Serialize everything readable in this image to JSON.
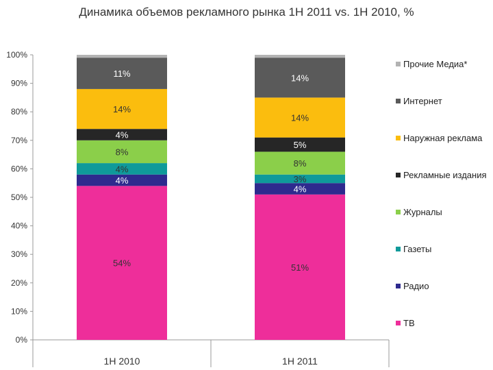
{
  "chart_data": {
    "type": "bar",
    "stacked": true,
    "title": "Динамика объемов рекламного рынка 1H 2011 vs. 1H 2010, %",
    "categories": [
      "1H 2010",
      "1H 2011"
    ],
    "ylim": [
      0,
      100
    ],
    "yticks": [
      "0%",
      "10%",
      "20%",
      "30%",
      "40%",
      "50%",
      "60%",
      "70%",
      "80%",
      "90%",
      "100%"
    ],
    "legend_position": "right",
    "grid": false,
    "series": [
      {
        "name": "ТВ",
        "color": "#ee2e9a",
        "values": [
          54,
          51
        ],
        "labels": [
          "54%",
          "51%"
        ]
      },
      {
        "name": "Радио",
        "color": "#2e2a8e",
        "values": [
          4,
          4
        ],
        "labels": [
          "4%",
          "4%"
        ]
      },
      {
        "name": "Газеты",
        "color": "#0f9a9a",
        "values": [
          4,
          3
        ],
        "labels": [
          "4%",
          "3%"
        ]
      },
      {
        "name": "Журналы",
        "color": "#8bcf4a",
        "values": [
          8,
          8
        ],
        "labels": [
          "8%",
          "8%"
        ]
      },
      {
        "name": "Рекламные издания",
        "color": "#262626",
        "values": [
          4,
          5
        ],
        "labels": [
          "4%",
          "5%"
        ]
      },
      {
        "name": "Наружная реклама",
        "color": "#fbbd0e",
        "values": [
          14,
          14
        ],
        "labels": [
          "14%",
          "14%"
        ]
      },
      {
        "name": "Интернет",
        "color": "#5a5a5a",
        "values": [
          11,
          14
        ],
        "labels": [
          "11%",
          "14%"
        ]
      },
      {
        "name": "Прочие Медиа*",
        "color": "#b3b3b3",
        "values": [
          1,
          1
        ],
        "labels": [
          "",
          ""
        ]
      }
    ]
  }
}
